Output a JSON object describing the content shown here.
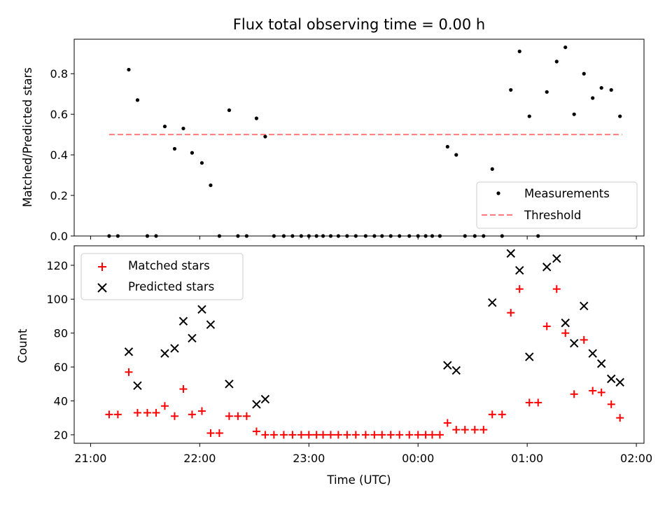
{
  "chart_data": [
    {
      "type": "scatter",
      "title": "Flux total observing time = 0.00 h",
      "xlabel": "",
      "ylabel": "Matched/Predicted stars",
      "ylim": [
        0,
        0.97
      ],
      "yticks": [
        "0.0",
        "0.2",
        "0.4",
        "0.6",
        "0.8"
      ],
      "x_range_hours": [
        20.85,
        26.07
      ],
      "legend": {
        "position": "lower-right",
        "entries": [
          "Measurements",
          "Threshold"
        ]
      },
      "threshold": {
        "name": "Threshold",
        "value": 0.5,
        "x": [
          21.17,
          25.87
        ],
        "color": "#ff7a7a"
      },
      "series": [
        {
          "name": "Measurements",
          "color": "#000000",
          "x": [
            21.17,
            21.25,
            21.35,
            21.43,
            21.52,
            21.6,
            21.68,
            21.77,
            21.85,
            21.93,
            22.02,
            22.1,
            22.18,
            22.27,
            22.35,
            22.43,
            22.52,
            22.6,
            22.68,
            22.77,
            22.85,
            22.93,
            23.0,
            23.07,
            23.13,
            23.2,
            23.27,
            23.35,
            23.43,
            23.52,
            23.6,
            23.67,
            23.75,
            23.83,
            23.92,
            24.0,
            24.07,
            24.13,
            24.2,
            24.27,
            24.35,
            24.43,
            24.52,
            24.6,
            24.68,
            24.77,
            24.85,
            24.93,
            25.02,
            25.1,
            25.18,
            25.27,
            25.35,
            25.43,
            25.52,
            25.6,
            25.68,
            25.77,
            25.85
          ],
          "y": [
            0.0,
            0.0,
            0.82,
            0.67,
            0.0,
            0.0,
            0.54,
            0.43,
            0.53,
            0.41,
            0.36,
            0.25,
            0.0,
            0.62,
            0.0,
            0.0,
            0.58,
            0.49,
            0.0,
            0.0,
            0.0,
            0.0,
            0.0,
            0.0,
            0.0,
            0.0,
            0.0,
            0.0,
            0.0,
            0.0,
            0.0,
            0.0,
            0.0,
            0.0,
            0.0,
            0.0,
            0.0,
            0.0,
            0.0,
            0.44,
            0.4,
            0.0,
            0.0,
            0.0,
            0.33,
            0.0,
            0.72,
            0.91,
            0.59,
            0.0,
            0.71,
            0.86,
            0.93,
            0.6,
            0.8,
            0.68,
            0.73,
            0.72,
            0.59
          ]
        }
      ]
    },
    {
      "type": "scatter",
      "title": "",
      "xlabel": "Time (UTC)",
      "ylabel": "Count",
      "ylim": [
        15,
        131.5
      ],
      "yticks": [
        "20",
        "40",
        "60",
        "80",
        "100",
        "120"
      ],
      "xticks": [
        {
          "hour": 21,
          "label": "21:00"
        },
        {
          "hour": 22,
          "label": "22:00"
        },
        {
          "hour": 23,
          "label": "23:00"
        },
        {
          "hour": 24,
          "label": "00:00"
        },
        {
          "hour": 25,
          "label": "01:00"
        },
        {
          "hour": 26,
          "label": "02:00"
        }
      ],
      "x_range_hours": [
        20.85,
        26.07
      ],
      "legend": {
        "position": "upper-left",
        "entries": [
          "Matched stars",
          "Predicted stars"
        ]
      },
      "series": [
        {
          "name": "Matched stars",
          "marker": "plus",
          "color": "#ff0000",
          "x": [
            21.17,
            21.25,
            21.35,
            21.43,
            21.52,
            21.6,
            21.68,
            21.77,
            21.85,
            21.93,
            22.02,
            22.1,
            22.18,
            22.27,
            22.35,
            22.43,
            22.52,
            22.6,
            22.68,
            22.77,
            22.85,
            22.93,
            23.0,
            23.07,
            23.13,
            23.2,
            23.27,
            23.35,
            23.43,
            23.52,
            23.6,
            23.67,
            23.75,
            23.83,
            23.92,
            24.0,
            24.07,
            24.13,
            24.2,
            24.27,
            24.35,
            24.43,
            24.52,
            24.6,
            24.68,
            24.77,
            24.85,
            24.93,
            25.02,
            25.1,
            25.18,
            25.27,
            25.35,
            25.43,
            25.52,
            25.6,
            25.68,
            25.77,
            25.85
          ],
          "y": [
            32,
            32,
            57,
            33,
            33,
            33,
            37,
            31,
            47,
            32,
            34,
            21,
            21,
            31,
            31,
            31,
            22,
            20,
            20,
            20,
            20,
            20,
            20,
            20,
            20,
            20,
            20,
            20,
            20,
            20,
            20,
            20,
            20,
            20,
            20,
            20,
            20,
            20,
            20,
            27,
            23,
            23,
            23,
            23,
            32,
            32,
            92,
            106,
            39,
            39,
            84,
            106,
            80,
            44,
            76,
            46,
            45,
            38,
            30
          ]
        },
        {
          "name": "Predicted stars",
          "marker": "x",
          "color": "#000000",
          "x": [
            21.35,
            21.43,
            21.68,
            21.77,
            21.85,
            21.93,
            22.02,
            22.1,
            22.27,
            22.52,
            22.6,
            24.27,
            24.35,
            24.68,
            24.85,
            24.93,
            25.02,
            25.18,
            25.27,
            25.35,
            25.43,
            25.52,
            25.6,
            25.68,
            25.77,
            25.85
          ],
          "y": [
            69,
            49,
            68,
            71,
            87,
            77,
            94,
            85,
            50,
            38,
            41,
            61,
            58,
            98,
            127,
            117,
            66,
            119,
            124,
            86,
            74,
            96,
            68,
            62,
            53,
            51
          ]
        }
      ]
    }
  ]
}
